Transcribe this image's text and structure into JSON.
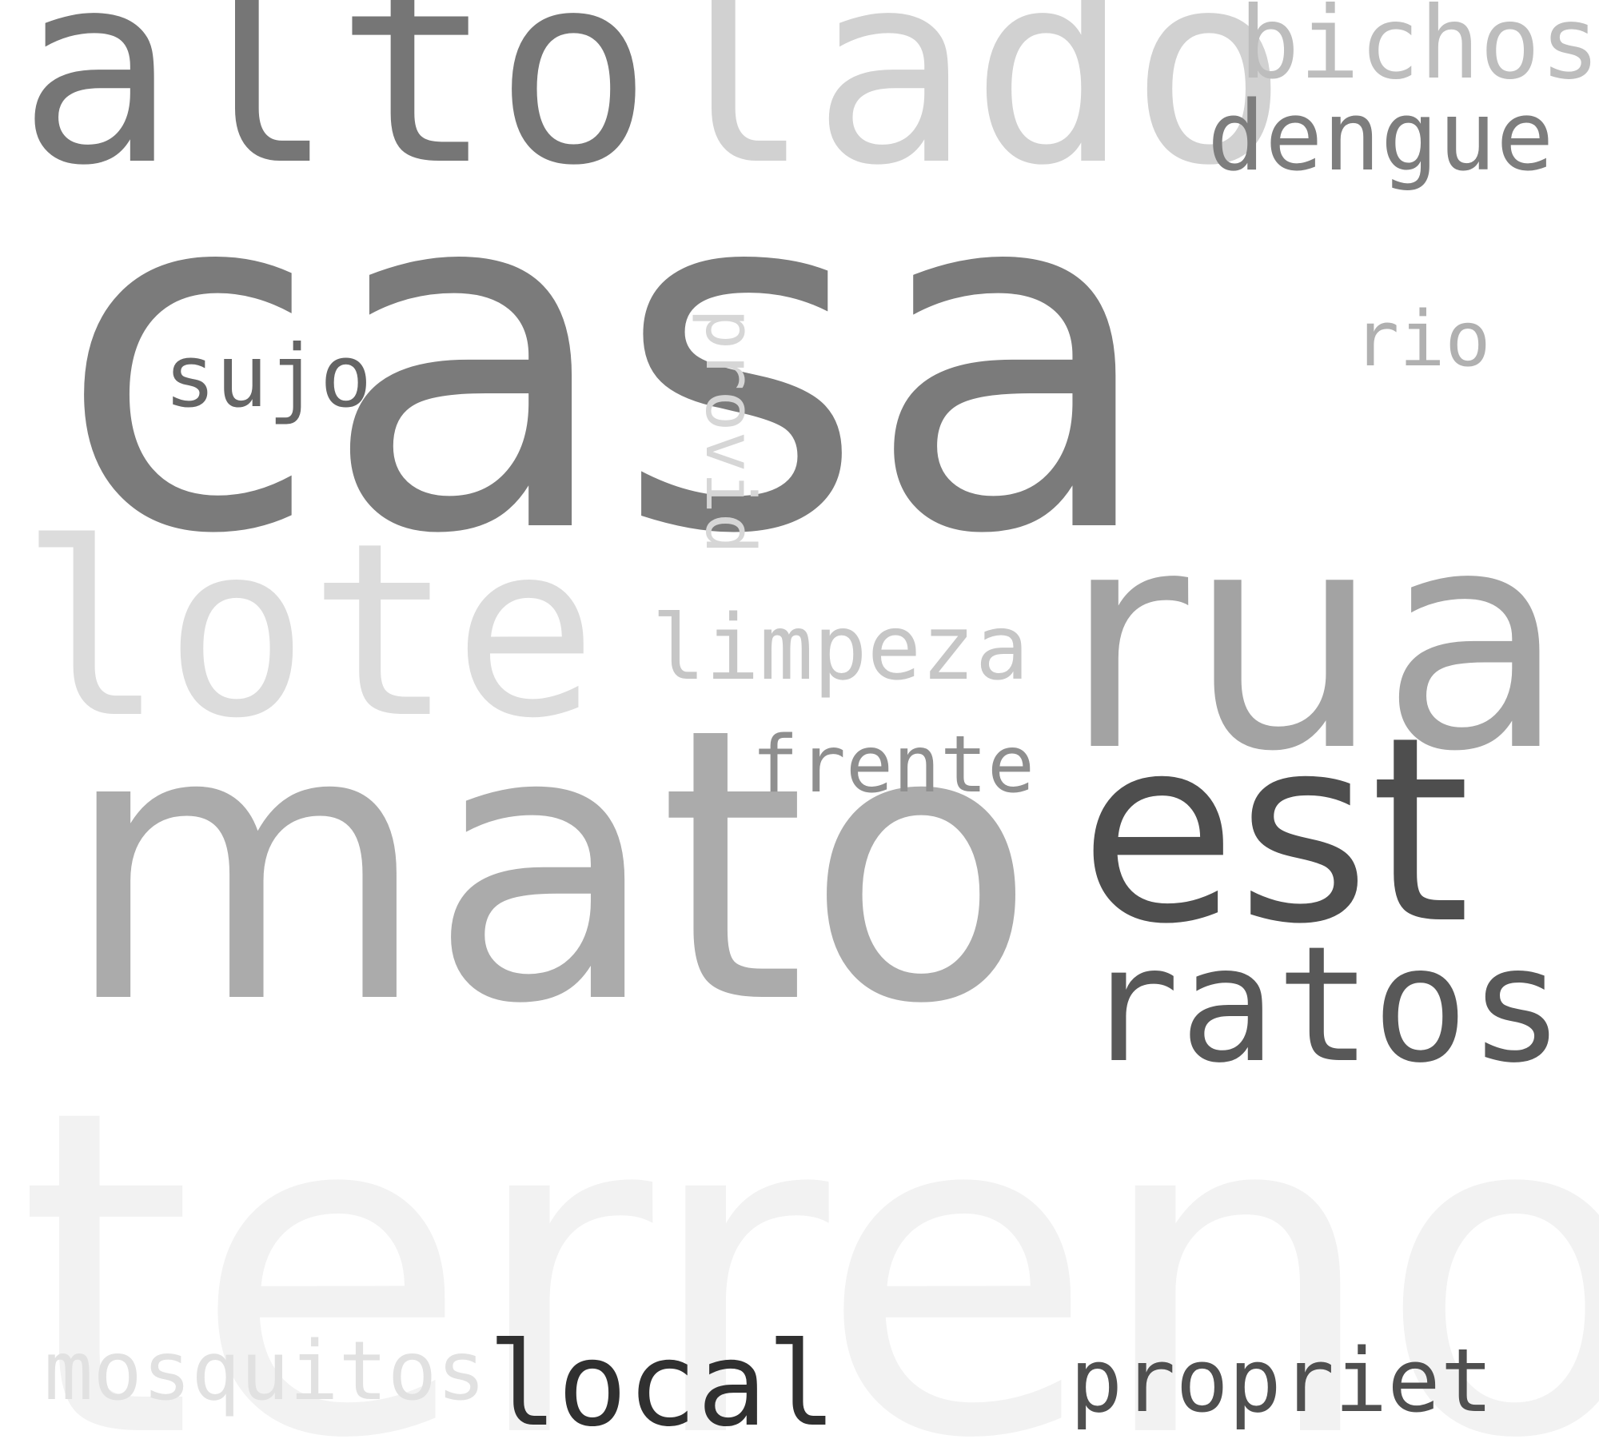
{
  "words": {
    "terreno": {
      "text": "terreno",
      "color": "#f2f2f2"
    },
    "casa": {
      "text": "casa",
      "color": "#7b7b7b"
    },
    "mato": {
      "text": "mato",
      "color": "#ababab"
    },
    "altolado": {
      "text": "altolado",
      "colors": [
        "#767676",
        "#d1d1d1"
      ],
      "parts": [
        "alto",
        "lado"
      ]
    },
    "lote": {
      "text": "lote",
      "color": "#dcdcdc"
    },
    "rua": {
      "text": "rua",
      "color": "#a3a3a3"
    },
    "est": {
      "text": "est",
      "color": "#4e4e4e"
    },
    "ratos": {
      "text": "ratos",
      "color": "#585858"
    },
    "bichos": {
      "text": "bichos",
      "color": "#bdbdbd"
    },
    "dengue": {
      "text": "dengue",
      "color": "#7d7d7d"
    },
    "sujo": {
      "text": "sujo",
      "color": "#656565"
    },
    "rio": {
      "text": "rio",
      "color": "#b0b0b0"
    },
    "limpeza": {
      "text": "limpeza",
      "color": "#c6c6c6"
    },
    "frente": {
      "text": "frente",
      "color": "#8f8f8f"
    },
    "local": {
      "text": "local",
      "color": "#303030"
    },
    "mosquitos": {
      "text": "mosquitos",
      "color": "#e1e1e1"
    },
    "propriet": {
      "text": "propriet",
      "color": "#4f4f4f"
    },
    "provid": {
      "text": "provid",
      "color": "#d6d6d6"
    }
  }
}
